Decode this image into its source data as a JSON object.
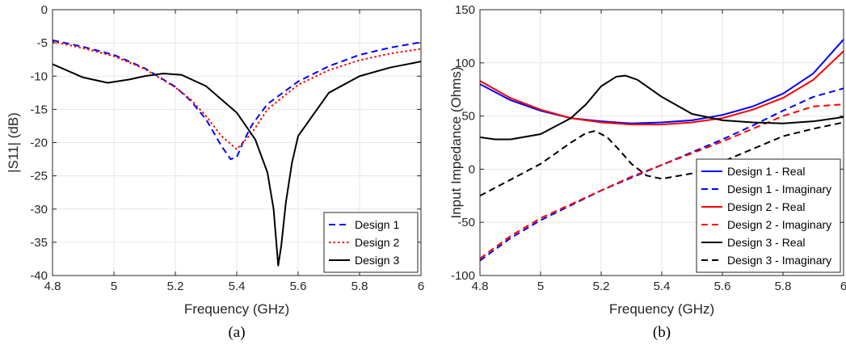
{
  "chart_data": [
    {
      "type": "line",
      "caption": "(a)",
      "xlabel": "Frequency (GHz)",
      "ylabel": "|S11| (dB)",
      "xlim": [
        4.8,
        6.0
      ],
      "ylim": [
        -40,
        0
      ],
      "xticks": [
        4.8,
        5.0,
        5.2,
        5.4,
        5.6,
        5.8,
        6.0
      ],
      "xtick_labels": [
        "4.8",
        "5",
        "5.2",
        "5.4",
        "5.6",
        "5.8",
        "6"
      ],
      "yticks": [
        0,
        -5,
        -10,
        -15,
        -20,
        -25,
        -30,
        -35,
        -40
      ],
      "ytick_labels": [
        "0",
        "-5",
        "-10",
        "-15",
        "-20",
        "-25",
        "-30",
        "-35",
        "-40"
      ],
      "grid": true,
      "legend_position": "bottom-right",
      "series": [
        {
          "name": "Design 1",
          "color": "#0000ff",
          "dash": "dashed",
          "x": [
            4.8,
            4.9,
            5.0,
            5.1,
            5.2,
            5.25,
            5.3,
            5.35,
            5.38,
            5.4,
            5.42,
            5.45,
            5.5,
            5.6,
            5.7,
            5.8,
            5.9,
            6.0
          ],
          "y": [
            -4.6,
            -5.6,
            -6.8,
            -8.8,
            -11.6,
            -13.7,
            -16.5,
            -20.5,
            -22.5,
            -22.2,
            -20.0,
            -17.3,
            -14.2,
            -10.8,
            -8.5,
            -6.8,
            -5.7,
            -4.9
          ]
        },
        {
          "name": "Design 2",
          "color": "#ff0000",
          "dash": "dotted",
          "x": [
            4.8,
            4.9,
            5.0,
            5.1,
            5.2,
            5.25,
            5.3,
            5.35,
            5.4,
            5.45,
            5.5,
            5.6,
            5.7,
            5.8,
            5.9,
            6.0
          ],
          "y": [
            -4.8,
            -5.8,
            -7.0,
            -8.9,
            -11.7,
            -13.5,
            -16.0,
            -19.0,
            -21.0,
            -18.5,
            -15.0,
            -11.3,
            -9.1,
            -7.6,
            -6.6,
            -5.9
          ]
        },
        {
          "name": "Design 3",
          "color": "#000000",
          "dash": "solid",
          "x": [
            4.8,
            4.9,
            4.98,
            5.05,
            5.1,
            5.16,
            5.22,
            5.3,
            5.4,
            5.46,
            5.5,
            5.52,
            5.535,
            5.545,
            5.56,
            5.58,
            5.6,
            5.7,
            5.8,
            5.9,
            6.0
          ],
          "y": [
            -8.2,
            -10.2,
            -11.0,
            -10.5,
            -10.0,
            -9.6,
            -9.8,
            -11.5,
            -15.5,
            -19.5,
            -24.5,
            -30.0,
            -38.5,
            -35.5,
            -29.0,
            -23.0,
            -19.0,
            -12.5,
            -10.0,
            -8.7,
            -7.8
          ]
        }
      ]
    },
    {
      "type": "line",
      "caption": "(b)",
      "xlabel": "Frequency (GHz)",
      "ylabel": "Input Impedance (Ohms)",
      "xlim": [
        4.8,
        6.0
      ],
      "ylim": [
        -100,
        150
      ],
      "xticks": [
        4.8,
        5.0,
        5.2,
        5.4,
        5.6,
        5.8,
        6.0
      ],
      "xtick_labels": [
        "4.8",
        "5",
        "5.2",
        "5.4",
        "5.6",
        "5.8",
        "6"
      ],
      "yticks": [
        150,
        100,
        50,
        0,
        -50,
        -100
      ],
      "ytick_labels": [
        "150",
        "100",
        "50",
        "0",
        "-50",
        "-100"
      ],
      "grid": true,
      "legend_position": "bottom-right",
      "series": [
        {
          "name": "Design 1 - Real",
          "color": "#0000ff",
          "dash": "solid",
          "x": [
            4.8,
            4.9,
            5.0,
            5.1,
            5.2,
            5.3,
            5.4,
            5.5,
            5.6,
            5.7,
            5.8,
            5.9,
            6.0
          ],
          "y": [
            80,
            65,
            55,
            48,
            45,
            43,
            44,
            46,
            51,
            59,
            71,
            90,
            122
          ]
        },
        {
          "name": "Design 1 - Imaginary",
          "color": "#0000ff",
          "dash": "dashed",
          "x": [
            4.8,
            4.9,
            5.0,
            5.1,
            5.2,
            5.3,
            5.4,
            5.5,
            5.6,
            5.7,
            5.8,
            5.9,
            6.0
          ],
          "y": [
            -86,
            -65,
            -48,
            -34,
            -20,
            -8,
            4,
            16,
            28,
            41,
            55,
            68,
            76
          ]
        },
        {
          "name": "Design 2 - Real",
          "color": "#ff0000",
          "dash": "solid",
          "x": [
            4.8,
            4.9,
            5.0,
            5.1,
            5.2,
            5.3,
            5.4,
            5.5,
            5.6,
            5.7,
            5.8,
            5.9,
            6.0
          ],
          "y": [
            83,
            67,
            56,
            48,
            44,
            42,
            42,
            44,
            48,
            56,
            67,
            84,
            111
          ]
        },
        {
          "name": "Design 2 - Imaginary",
          "color": "#ff0000",
          "dash": "dashed",
          "x": [
            4.8,
            4.9,
            5.0,
            5.1,
            5.2,
            5.3,
            5.4,
            5.5,
            5.6,
            5.7,
            5.8,
            5.9,
            6.0
          ],
          "y": [
            -84,
            -63,
            -46,
            -33,
            -20,
            -7,
            4,
            15,
            26,
            38,
            50,
            59,
            61
          ]
        },
        {
          "name": "Design 3 - Real",
          "color": "#000000",
          "dash": "solid",
          "x": [
            4.8,
            4.85,
            4.9,
            5.0,
            5.1,
            5.15,
            5.2,
            5.25,
            5.28,
            5.32,
            5.4,
            5.5,
            5.6,
            5.7,
            5.8,
            5.9,
            6.0
          ],
          "y": [
            30,
            28,
            28,
            33,
            48,
            61,
            78,
            87,
            88,
            84,
            68,
            52,
            46,
            44,
            43,
            45,
            49
          ]
        },
        {
          "name": "Design 3 - Imaginary",
          "color": "#000000",
          "dash": "dashed",
          "x": [
            4.8,
            4.9,
            5.0,
            5.1,
            5.15,
            5.18,
            5.22,
            5.26,
            5.3,
            5.35,
            5.4,
            5.5,
            5.6,
            5.7,
            5.8,
            5.9,
            6.0
          ],
          "y": [
            -25,
            -10,
            5,
            25,
            34,
            36,
            30,
            18,
            5,
            -6,
            -9,
            -4,
            7,
            19,
            31,
            38,
            44
          ]
        }
      ]
    }
  ]
}
